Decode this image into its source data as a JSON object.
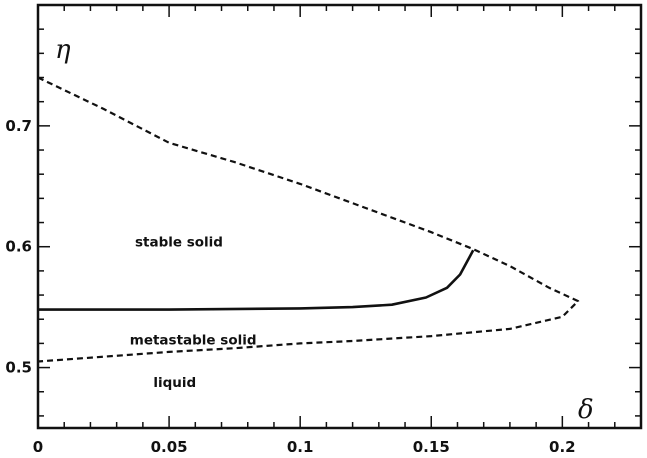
{
  "chart_data": {
    "type": "line",
    "xlabel": "δ",
    "ylabel": "η",
    "xlim": [
      0,
      0.23
    ],
    "ylim": [
      0.45,
      0.8
    ],
    "x_ticks": [
      "0",
      "0.05",
      "0.1",
      "0.15",
      "0.2"
    ],
    "y_ticks": [
      "0.5",
      "0.6",
      "0.7"
    ],
    "grid": false,
    "colors": {
      "line": "#111111",
      "axis": "#111111"
    },
    "series": [
      {
        "style": "dashed",
        "points": [
          [
            0,
            0.74
          ],
          [
            0.025,
            0.714
          ],
          [
            0.05,
            0.686
          ],
          [
            0.075,
            0.67
          ],
          [
            0.1,
            0.652
          ],
          [
            0.125,
            0.632
          ],
          [
            0.15,
            0.612
          ],
          [
            0.166,
            0.598
          ],
          [
            0.18,
            0.584
          ],
          [
            0.195,
            0.566
          ],
          [
            0.206,
            0.555
          ],
          [
            0.2,
            0.542
          ],
          [
            0.18,
            0.532
          ],
          [
            0.15,
            0.526
          ],
          [
            0.12,
            0.522
          ],
          [
            0.1,
            0.52
          ],
          [
            0.075,
            0.516
          ],
          [
            0.05,
            0.513
          ],
          [
            0.025,
            0.509
          ],
          [
            0,
            0.505
          ]
        ]
      },
      {
        "style": "solid",
        "points": [
          [
            0,
            0.548
          ],
          [
            0.05,
            0.548
          ],
          [
            0.1,
            0.549
          ],
          [
            0.12,
            0.55
          ],
          [
            0.135,
            0.552
          ],
          [
            0.148,
            0.558
          ],
          [
            0.156,
            0.566
          ],
          [
            0.161,
            0.577
          ],
          [
            0.166,
            0.597
          ]
        ]
      }
    ],
    "annotations": [
      {
        "text": "stable solid",
        "x": 0.037,
        "y": 0.6
      },
      {
        "text": "metastable solid",
        "x": 0.035,
        "y": 0.519
      },
      {
        "text": "liquid",
        "x": 0.044,
        "y": 0.484
      }
    ]
  }
}
